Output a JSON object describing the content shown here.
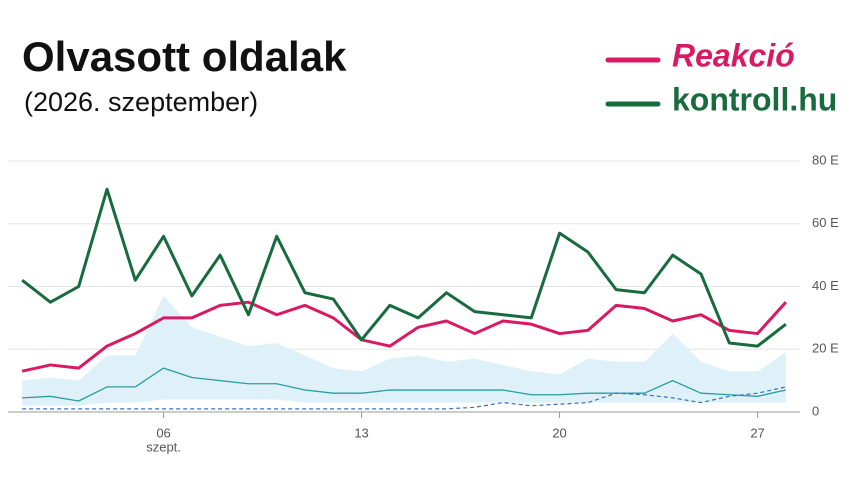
{
  "chart_data": {
    "type": "line",
    "title": "Olvasott oldalak",
    "subtitle": "(2026. szeptember)",
    "x_sublabel": "szept.",
    "x": [
      1,
      2,
      3,
      4,
      5,
      6,
      7,
      8,
      9,
      10,
      11,
      12,
      13,
      14,
      15,
      16,
      17,
      18,
      19,
      20,
      21,
      22,
      23,
      24,
      25,
      26,
      27,
      28
    ],
    "series": [
      {
        "name": "Reakció",
        "color": "#d91a63",
        "values": [
          13,
          15,
          14,
          21,
          25,
          30,
          30,
          34,
          35,
          31,
          34,
          30,
          23,
          21,
          27,
          29,
          25,
          29,
          28,
          25,
          26,
          34,
          33,
          29,
          31,
          26,
          25,
          35
        ]
      },
      {
        "name": "kontroll.hu",
        "color": "#176b3c",
        "values": [
          42,
          35,
          40,
          71,
          42,
          56,
          37,
          50,
          31,
          56,
          38,
          36,
          23,
          34,
          30,
          38,
          32,
          31,
          30,
          57,
          51,
          39,
          38,
          50,
          44,
          22,
          21,
          28
        ]
      }
    ],
    "band": {
      "color": "#dff1f8",
      "lower": [
        2,
        2,
        2,
        3,
        3,
        4,
        4,
        4,
        4,
        4,
        3,
        3,
        3,
        3,
        3,
        3,
        3,
        3,
        3,
        3,
        3,
        3,
        3,
        3,
        3,
        3,
        3,
        3
      ],
      "upper": [
        10,
        11,
        10,
        18,
        18,
        37,
        27,
        24,
        21,
        22,
        18,
        14,
        13,
        17,
        18,
        16,
        17,
        15,
        13,
        12,
        17,
        16,
        16,
        25,
        16,
        13,
        13,
        19
      ]
    },
    "extra_lines": [
      {
        "color": "#2a9d9f",
        "dash": false,
        "values": [
          4.5,
          5,
          3.5,
          8,
          8,
          14,
          11,
          10,
          9,
          9,
          7,
          6,
          6,
          7,
          7,
          7,
          7,
          7,
          5.5,
          5.5,
          6,
          6,
          6,
          10,
          6,
          5.5,
          5,
          7
        ]
      },
      {
        "color": "#3a6fc4",
        "dash": true,
        "values": [
          1,
          1,
          1,
          1,
          1,
          1,
          1,
          1,
          1,
          1,
          1,
          1,
          1,
          1,
          1,
          1,
          1.5,
          3,
          2,
          2.5,
          3,
          6,
          5.5,
          4.5,
          3,
          5,
          6,
          8
        ]
      }
    ],
    "xlim": [
      0.5,
      28.5
    ],
    "xticks": [
      {
        "value": 6,
        "label": "06"
      },
      13,
      20,
      27
    ],
    "ylim": [
      0,
      80
    ],
    "yticks": [
      0,
      {
        "value": 20,
        "label": "20 E"
      },
      {
        "value": 40,
        "label": "40 E"
      },
      {
        "value": 60,
        "label": "60 E"
      },
      {
        "value": 80,
        "label": "80 E"
      }
    ],
    "grid": true
  }
}
